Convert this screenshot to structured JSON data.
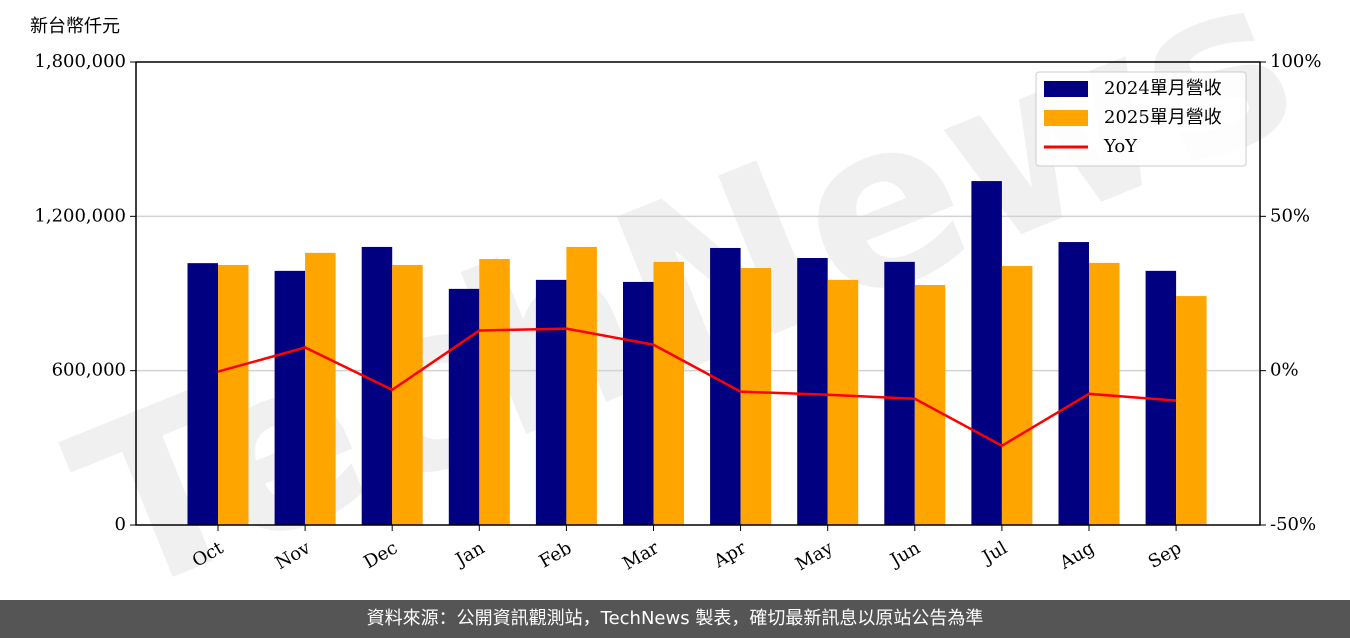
{
  "chart_data": {
    "type": "bar-line",
    "y_label": "新台幣仟元",
    "watermark": "TechNews",
    "categories": [
      "Oct",
      "Nov",
      "Dec",
      "Jan",
      "Feb",
      "Mar",
      "Apr",
      "May",
      "Jun",
      "Jul",
      "Aug",
      "Sep"
    ],
    "series": [
      {
        "name": "2024單月營收",
        "color": "#000080",
        "values": [
          1018000,
          988000,
          1081000,
          918000,
          953000,
          945000,
          1077000,
          1038000,
          1023000,
          1337000,
          1100000,
          988000
        ]
      },
      {
        "name": "2025單月營收",
        "color": "#ffa500",
        "values": [
          1011000,
          1058000,
          1011000,
          1034000,
          1081000,
          1023000,
          999000,
          953000,
          933000,
          1007000,
          1019000,
          890000
        ]
      },
      {
        "name": "YoY",
        "color": "#ff0000",
        "axis": "y2",
        "values": [
          -0.3,
          7.5,
          -6.2,
          13.0,
          13.6,
          8.4,
          -6.8,
          -7.8,
          -9.1,
          -24.3,
          -7.5,
          -9.7
        ]
      }
    ],
    "ylim": [
      0,
      1800000
    ],
    "yticks": [
      {
        "value": 0,
        "label": "0"
      },
      {
        "value": 600000,
        "label": "600,000"
      },
      {
        "value": 1200000,
        "label": "1,200,000"
      },
      {
        "value": 1800000,
        "label": "1,800,000"
      }
    ],
    "y2lim": [
      -50,
      100
    ],
    "y2ticks": [
      {
        "value": -50,
        "label": "-50%"
      },
      {
        "value": 0,
        "label": "0%"
      },
      {
        "value": 50,
        "label": "50%"
      },
      {
        "value": 100,
        "label": "100%"
      }
    ],
    "grid": true,
    "legend": "upper right",
    "footer": "資料來源：公開資訊觀測站，TechNews 製表，確切最新訊息以原站公告為準"
  }
}
